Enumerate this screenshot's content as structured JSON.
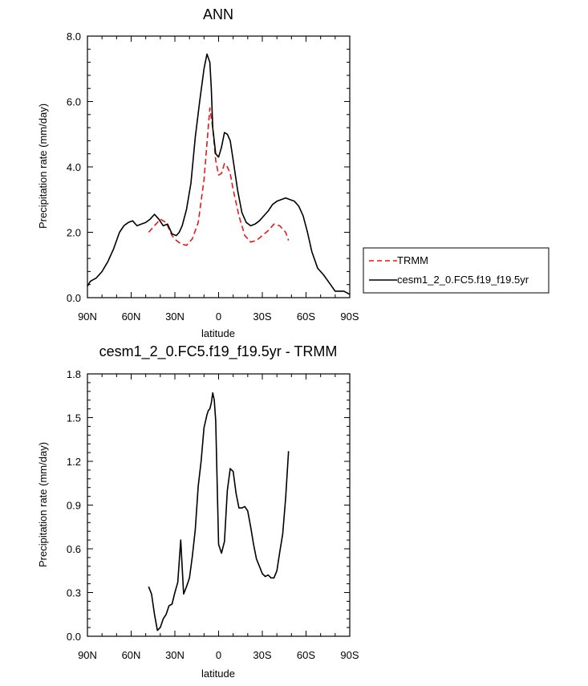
{
  "chart_data": [
    {
      "type": "line",
      "title": "ANN",
      "xlabel": "latitude",
      "ylabel": "Precipitation rate (mm/day)",
      "xlim": [
        90,
        -90
      ],
      "ylim": [
        0,
        8
      ],
      "x_ticks": [
        90,
        60,
        30,
        0,
        -30,
        -60,
        -90
      ],
      "x_tick_labels": [
        "90N",
        "60N",
        "30N",
        "0",
        "30S",
        "60S",
        "90S"
      ],
      "y_ticks": [
        0,
        2,
        4,
        6,
        8
      ],
      "y_tick_labels": [
        "0.0",
        "2.0",
        "4.0",
        "6.0",
        "8.0"
      ],
      "series": [
        {
          "name": "TRMM",
          "style": "dashed",
          "color": "#e41a1c",
          "x": [
            48,
            44,
            40,
            36,
            32,
            29,
            26,
            22,
            18,
            14,
            10,
            6,
            4,
            2,
            0,
            -2,
            -4,
            -6,
            -8,
            -10,
            -14,
            -18,
            -22,
            -26,
            -30,
            -34,
            -38,
            -42,
            -46,
            -48
          ],
          "y": [
            2.0,
            2.2,
            2.4,
            2.3,
            1.9,
            1.75,
            1.65,
            1.6,
            1.8,
            2.3,
            3.6,
            5.8,
            5.2,
            4.2,
            3.75,
            3.8,
            4.1,
            4.0,
            3.8,
            3.3,
            2.5,
            1.9,
            1.7,
            1.75,
            1.9,
            2.05,
            2.25,
            2.2,
            2.0,
            1.75
          ]
        },
        {
          "name": "cesm1_2_0.FC5.f19_f19.5yr",
          "style": "solid",
          "color": "#000000",
          "x": [
            90,
            88,
            84,
            80,
            76,
            72,
            68,
            65,
            62,
            59,
            56,
            53,
            50,
            47,
            44,
            41,
            38,
            35,
            32,
            29,
            27,
            25,
            22,
            19,
            16,
            13,
            10,
            8,
            6,
            5,
            4,
            2,
            0,
            -2,
            -4,
            -6,
            -8,
            -10,
            -13,
            -16,
            -19,
            -22,
            -25,
            -28,
            -31,
            -34,
            -37,
            -40,
            -43,
            -46,
            -49,
            -52,
            -55,
            -58,
            -61,
            -64,
            -68,
            -72,
            -76,
            -80,
            -83,
            -86,
            -88,
            -90
          ],
          "y": [
            0.35,
            0.5,
            0.6,
            0.8,
            1.1,
            1.5,
            2.0,
            2.2,
            2.3,
            2.35,
            2.2,
            2.25,
            2.3,
            2.4,
            2.55,
            2.4,
            2.2,
            2.25,
            1.95,
            1.9,
            2.0,
            2.2,
            2.7,
            3.5,
            4.9,
            6.0,
            7.0,
            7.45,
            7.2,
            6.4,
            5.2,
            4.4,
            4.3,
            4.6,
            5.05,
            5.0,
            4.8,
            4.2,
            3.3,
            2.6,
            2.3,
            2.2,
            2.25,
            2.35,
            2.5,
            2.65,
            2.85,
            2.95,
            3.0,
            3.05,
            3.0,
            2.95,
            2.8,
            2.5,
            2.0,
            1.4,
            0.9,
            0.7,
            0.45,
            0.2,
            0.2,
            0.2,
            0.15,
            0.1
          ]
        }
      ],
      "legend": {
        "position": "right",
        "entries": [
          "TRMM",
          "cesm1_2_0.FC5.f19_f19.5yr"
        ]
      }
    },
    {
      "type": "line",
      "title": "cesm1_2_0.FC5.f19_f19.5yr - TRMM",
      "xlabel": "latitude",
      "ylabel": "Precipitation rate (mm/day)",
      "xlim": [
        90,
        -90
      ],
      "ylim": [
        0,
        1.8
      ],
      "x_ticks": [
        90,
        60,
        30,
        0,
        -30,
        -60,
        -90
      ],
      "x_tick_labels": [
        "90N",
        "60N",
        "30N",
        "0",
        "30S",
        "60S",
        "90S"
      ],
      "y_ticks": [
        0,
        0.3,
        0.6,
        0.9,
        1.2,
        1.5,
        1.8
      ],
      "y_tick_labels": [
        "0.0",
        "0.3",
        "0.6",
        "0.9",
        "1.2",
        "1.5",
        "1.8"
      ],
      "series": [
        {
          "name": "cesm1_2_0.FC5.f19_f19.5yr - TRMM",
          "style": "solid",
          "color": "#000000",
          "x": [
            48,
            46,
            44,
            42,
            40,
            38,
            36,
            34,
            32,
            30,
            28,
            26,
            24,
            22,
            20,
            18,
            16,
            14,
            12,
            10,
            8,
            7,
            6,
            5,
            4,
            3,
            2,
            0,
            -2,
            -4,
            -6,
            -8,
            -10,
            -12,
            -14,
            -16,
            -18,
            -20,
            -22,
            -24,
            -26,
            -28,
            -30,
            -32,
            -34,
            -36,
            -38,
            -40,
            -42,
            -44,
            -46,
            -48
          ],
          "y": [
            0.34,
            0.29,
            0.15,
            0.04,
            0.06,
            0.12,
            0.15,
            0.21,
            0.22,
            0.3,
            0.37,
            0.66,
            0.29,
            0.34,
            0.4,
            0.55,
            0.73,
            1.03,
            1.2,
            1.43,
            1.52,
            1.55,
            1.56,
            1.6,
            1.67,
            1.62,
            1.48,
            0.63,
            0.57,
            0.65,
            1.0,
            1.15,
            1.13,
            0.98,
            0.88,
            0.88,
            0.89,
            0.86,
            0.75,
            0.63,
            0.53,
            0.48,
            0.43,
            0.41,
            0.42,
            0.4,
            0.4,
            0.45,
            0.58,
            0.7,
            0.95,
            1.27
          ]
        }
      ]
    }
  ]
}
